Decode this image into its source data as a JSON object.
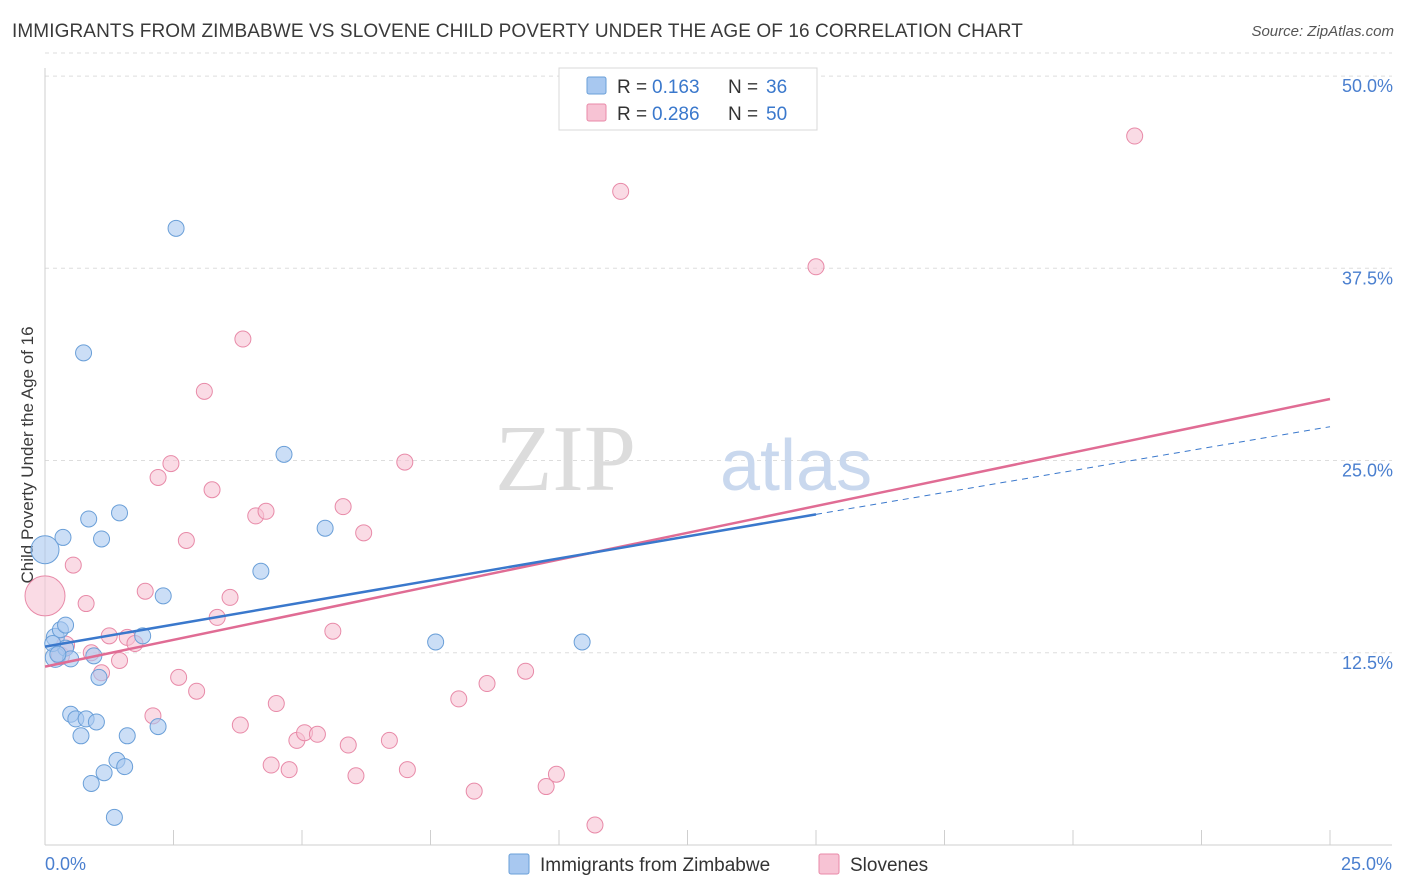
{
  "header": {
    "title": "IMMIGRANTS FROM ZIMBABWE VS SLOVENE CHILD POVERTY UNDER THE AGE OF 16 CORRELATION CHART",
    "source": "Source: ZipAtlas.com"
  },
  "watermark": {
    "zip": "ZIP",
    "atlas": "atlas"
  },
  "legend_box": {
    "rows": [
      {
        "r_label": "R =",
        "r_value": "0.163",
        "n_label": "N =",
        "n_value": "36",
        "color": "#a8c8f0"
      },
      {
        "r_label": "R =",
        "r_value": "0.286",
        "n_label": "N =",
        "n_value": "50",
        "color": "#f4b8cc"
      }
    ]
  },
  "colors": {
    "blue_fill": "#a8c8f0",
    "blue_stroke": "#6a9fd8",
    "blue_line": "#3a78cc",
    "pink_fill": "#f7c3d4",
    "pink_stroke": "#e88aa8",
    "pink_line": "#e06c94",
    "tick_text": "#4a7fcf",
    "grid": "#dddddd"
  },
  "chart_data": {
    "type": "scatter",
    "title": "IMMIGRANTS FROM ZIMBABWE VS SLOVENE CHILD POVERTY UNDER THE AGE OF 16 CORRELATION CHART",
    "xlabel": "",
    "ylabel": "Child Poverty Under the Age of 16",
    "xlim": [
      0,
      25
    ],
    "ylim": [
      0,
      51.5
    ],
    "x_tick_labels": [
      "0.0%",
      "25.0%"
    ],
    "y_ticks": [
      12.5,
      25.0,
      37.5,
      50.0
    ],
    "y_tick_labels": [
      "12.5%",
      "25.0%",
      "37.5%",
      "50.0%"
    ],
    "grid": true,
    "legend_position": "bottom",
    "series": [
      {
        "name": "Immigrants from Zimbabwe",
        "color": "#a8c8f0",
        "r": 0.163,
        "n": 36,
        "trend": {
          "x": [
            0,
            15
          ],
          "y": [
            12.9,
            21.5
          ]
        },
        "trend_dashed": {
          "x": [
            15,
            25
          ],
          "y": [
            21.5,
            27.2
          ]
        },
        "points": [
          [
            0.0,
            19.2,
            14
          ],
          [
            0.2,
            13.5,
            9
          ],
          [
            0.2,
            12.2,
            10
          ],
          [
            0.3,
            14.0,
            8
          ],
          [
            0.35,
            20.0,
            8
          ],
          [
            0.4,
            14.3,
            8
          ],
          [
            0.4,
            12.8,
            8
          ],
          [
            0.5,
            12.1,
            8
          ],
          [
            0.5,
            8.5,
            8
          ],
          [
            0.6,
            8.2,
            8
          ],
          [
            0.7,
            7.1,
            8
          ],
          [
            0.75,
            32.0,
            8
          ],
          [
            0.8,
            8.2,
            8
          ],
          [
            0.85,
            21.2,
            8
          ],
          [
            0.9,
            4.0,
            8
          ],
          [
            0.95,
            12.3,
            8
          ],
          [
            1.0,
            8.0,
            8
          ],
          [
            1.05,
            10.9,
            8
          ],
          [
            1.1,
            19.9,
            8
          ],
          [
            1.15,
            4.7,
            8
          ],
          [
            1.35,
            1.8,
            8
          ],
          [
            1.4,
            5.5,
            8
          ],
          [
            1.45,
            21.6,
            8
          ],
          [
            1.55,
            5.1,
            8
          ],
          [
            1.6,
            7.1,
            8
          ],
          [
            1.9,
            13.6,
            8
          ],
          [
            2.2,
            7.7,
            8
          ],
          [
            2.3,
            16.2,
            8
          ],
          [
            2.55,
            40.1,
            8
          ],
          [
            4.2,
            17.8,
            8
          ],
          [
            4.65,
            25.4,
            8
          ],
          [
            5.45,
            20.6,
            8
          ],
          [
            7.6,
            13.2,
            8
          ],
          [
            10.45,
            13.2,
            8
          ],
          [
            0.15,
            13.1,
            8
          ],
          [
            0.25,
            12.4,
            8
          ]
        ]
      },
      {
        "name": "Slovenes",
        "color": "#f7c3d4",
        "r": 0.286,
        "n": 50,
        "trend": {
          "x": [
            0,
            25
          ],
          "y": [
            11.6,
            29.0
          ]
        },
        "points": [
          [
            0.0,
            16.2,
            20
          ],
          [
            0.3,
            12.3,
            9
          ],
          [
            0.4,
            13.0,
            9
          ],
          [
            0.55,
            18.2,
            8
          ],
          [
            0.8,
            15.7,
            8
          ],
          [
            0.9,
            12.5,
            8
          ],
          [
            1.1,
            11.2,
            8
          ],
          [
            1.25,
            13.6,
            8
          ],
          [
            1.45,
            12.0,
            8
          ],
          [
            1.6,
            13.5,
            8
          ],
          [
            1.75,
            13.1,
            8
          ],
          [
            1.95,
            16.5,
            8
          ],
          [
            2.1,
            8.4,
            8
          ],
          [
            2.2,
            23.9,
            8
          ],
          [
            2.45,
            24.8,
            8
          ],
          [
            2.6,
            10.9,
            8
          ],
          [
            2.75,
            19.8,
            8
          ],
          [
            2.95,
            10.0,
            8
          ],
          [
            3.1,
            29.5,
            8
          ],
          [
            3.25,
            23.1,
            8
          ],
          [
            3.35,
            14.8,
            8
          ],
          [
            3.6,
            16.1,
            8
          ],
          [
            3.8,
            7.8,
            8
          ],
          [
            3.85,
            32.9,
            8
          ],
          [
            4.1,
            21.4,
            8
          ],
          [
            4.3,
            21.7,
            8
          ],
          [
            4.4,
            5.2,
            8
          ],
          [
            4.5,
            9.2,
            8
          ],
          [
            4.75,
            4.9,
            8
          ],
          [
            4.9,
            6.8,
            8
          ],
          [
            5.05,
            7.3,
            8
          ],
          [
            5.3,
            7.2,
            8
          ],
          [
            5.6,
            13.9,
            8
          ],
          [
            5.8,
            22.0,
            8
          ],
          [
            5.9,
            6.5,
            8
          ],
          [
            6.05,
            4.5,
            8
          ],
          [
            6.2,
            20.3,
            8
          ],
          [
            6.7,
            6.8,
            8
          ],
          [
            7.0,
            24.9,
            8
          ],
          [
            7.05,
            4.9,
            8
          ],
          [
            8.05,
            9.5,
            8
          ],
          [
            8.35,
            3.5,
            8
          ],
          [
            8.6,
            10.5,
            8
          ],
          [
            9.35,
            11.3,
            8
          ],
          [
            9.75,
            3.8,
            8
          ],
          [
            9.95,
            4.6,
            8
          ],
          [
            10.7,
            1.3,
            8
          ],
          [
            11.2,
            42.5,
            8
          ],
          [
            15.0,
            37.6,
            8
          ],
          [
            21.2,
            46.1,
            8
          ]
        ]
      }
    ]
  }
}
